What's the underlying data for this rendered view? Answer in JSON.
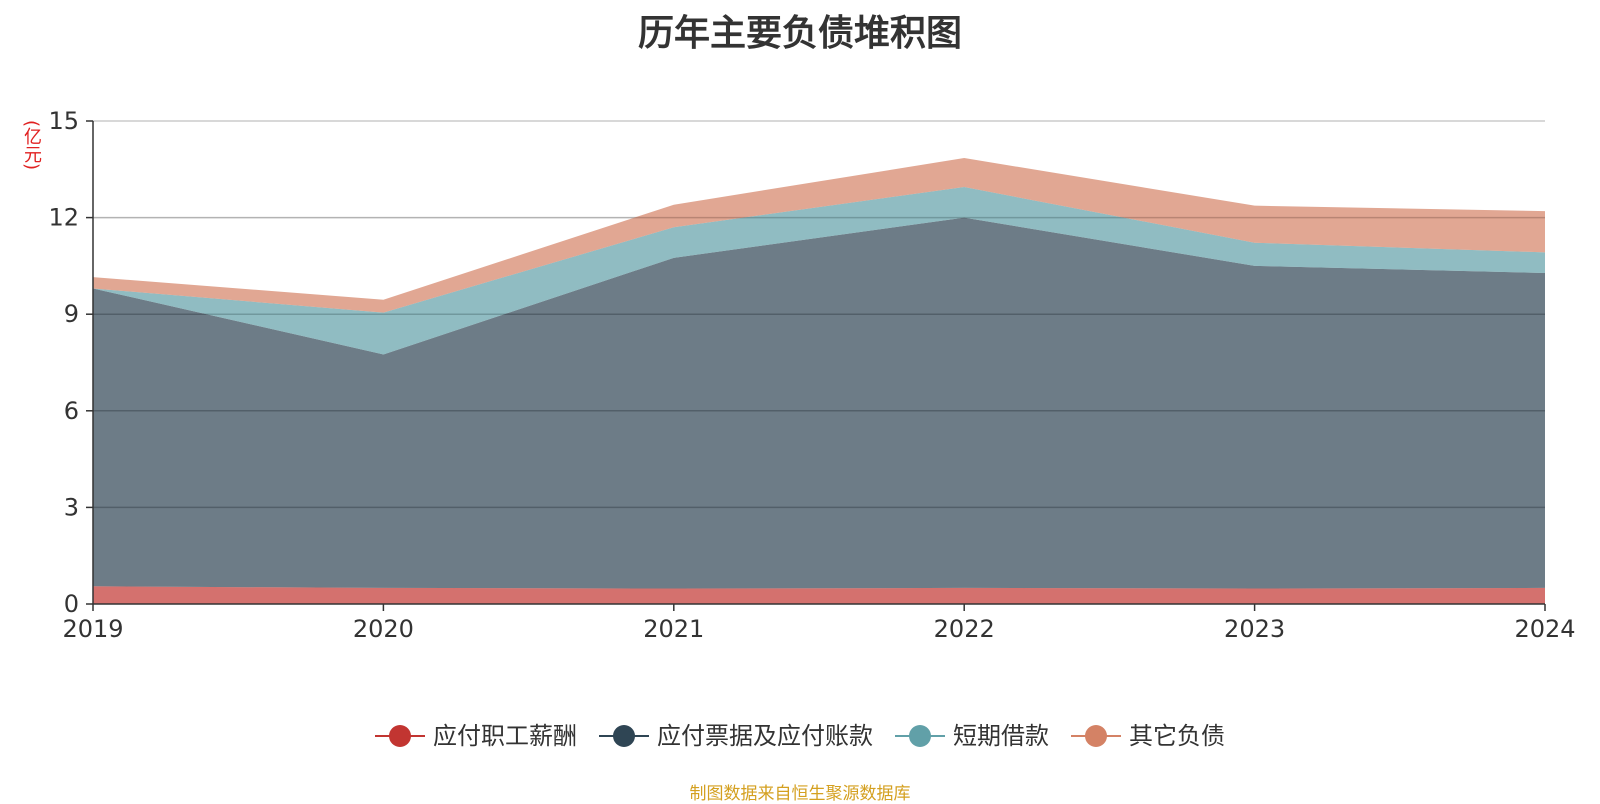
{
  "chart_data": {
    "type": "area",
    "stacked": true,
    "title": "历年主要负债堆积图",
    "ylabel": "(亿元)",
    "categories": [
      "2019",
      "2020",
      "2021",
      "2022",
      "2023",
      "2024"
    ],
    "ylim": [
      0,
      15
    ],
    "yticks": [
      0,
      3,
      6,
      9,
      12,
      15
    ],
    "grid": true,
    "legend_position": "bottom",
    "series": [
      {
        "name": "应付职工薪酬",
        "color": "#c23531",
        "values": [
          0.55,
          0.5,
          0.48,
          0.5,
          0.48,
          0.5
        ]
      },
      {
        "name": "应付票据及应付账款",
        "color": "#2f4554",
        "values": [
          9.25,
          7.25,
          10.27,
          11.5,
          10.02,
          9.78
        ]
      },
      {
        "name": "短期借款",
        "color": "#61a0a8",
        "values": [
          0.0,
          1.3,
          0.95,
          0.95,
          0.72,
          0.64
        ]
      },
      {
        "name": "其它负债",
        "color": "#d48265",
        "values": [
          0.35,
          0.4,
          0.7,
          0.9,
          1.15,
          1.28
        ]
      }
    ]
  },
  "footer": {
    "source": "制图数据来自恒生聚源数据库"
  }
}
